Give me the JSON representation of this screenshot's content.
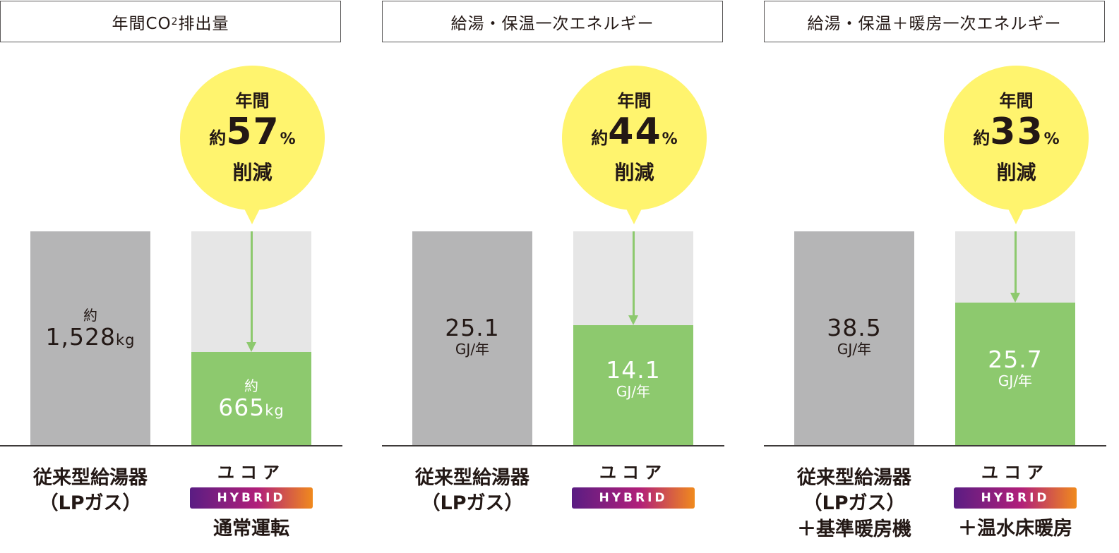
{
  "chart_data": [
    {
      "type": "bar",
      "title_main": "年間CO",
      "title_sub": "2",
      "title_end": "排出量",
      "categories": [
        "従来型給湯器（LPガス）",
        "ユコア HYBRID 通常運転"
      ],
      "values": [
        1528,
        665
      ],
      "ylim": [
        0,
        1528
      ],
      "old_value": {
        "prefix": "約",
        "number": "1,528",
        "unit": "kg"
      },
      "new_value": {
        "prefix": "約",
        "number": "665",
        "unit": "kg"
      },
      "reduction": {
        "line1": "年間",
        "prefix": "約",
        "number": "57",
        "pct": "%",
        "line3": "削減"
      },
      "label_old_1": "従来型給湯器",
      "label_old_2": "（LPガス）",
      "brand": "ユコア",
      "hybrid": "HYBRID",
      "caption": "通常運転"
    },
    {
      "type": "bar",
      "title_main": "給湯・保温一次エネルギー",
      "title_sub": "",
      "title_end": "",
      "categories": [
        "従来型給湯器（LPガス）",
        "ユコア HYBRID"
      ],
      "values": [
        25.1,
        14.1
      ],
      "ylim": [
        0,
        25.1
      ],
      "old_value": {
        "prefix": "",
        "number": "25.1",
        "unit": "GJ/年"
      },
      "new_value": {
        "prefix": "",
        "number": "14.1",
        "unit": "GJ/年"
      },
      "reduction": {
        "line1": "年間",
        "prefix": "約",
        "number": "44",
        "pct": "%",
        "line3": "削減"
      },
      "label_old_1": "従来型給湯器",
      "label_old_2": "（LPガス）",
      "brand": "ユコア",
      "hybrid": "HYBRID",
      "caption": ""
    },
    {
      "type": "bar",
      "title_main": "給湯・保温＋暖房一次エネルギー",
      "title_sub": "",
      "title_end": "",
      "categories": [
        "従来型給湯器（LPガス）＋基準暖房機",
        "ユコア HYBRID ＋温水床暖房"
      ],
      "values": [
        38.5,
        25.7
      ],
      "ylim": [
        0,
        38.5
      ],
      "old_value": {
        "prefix": "",
        "number": "38.5",
        "unit": "GJ/年"
      },
      "new_value": {
        "prefix": "",
        "number": "25.7",
        "unit": "GJ/年"
      },
      "reduction": {
        "line1": "年間",
        "prefix": "約",
        "number": "33",
        "pct": "%",
        "line3": "削減"
      },
      "label_old_1": "従来型給湯器",
      "label_old_2": "（LPガス）",
      "label_old_3": "＋基準暖房機",
      "brand": "ユコア",
      "hybrid": "HYBRID",
      "caption": "＋温水床暖房"
    }
  ],
  "colors": {
    "old_bar": "#b5b5b6",
    "new_bar": "#8dc96e",
    "bar_background": "#e6e6e6",
    "bubble": "#fff46e",
    "text": "#231815"
  }
}
